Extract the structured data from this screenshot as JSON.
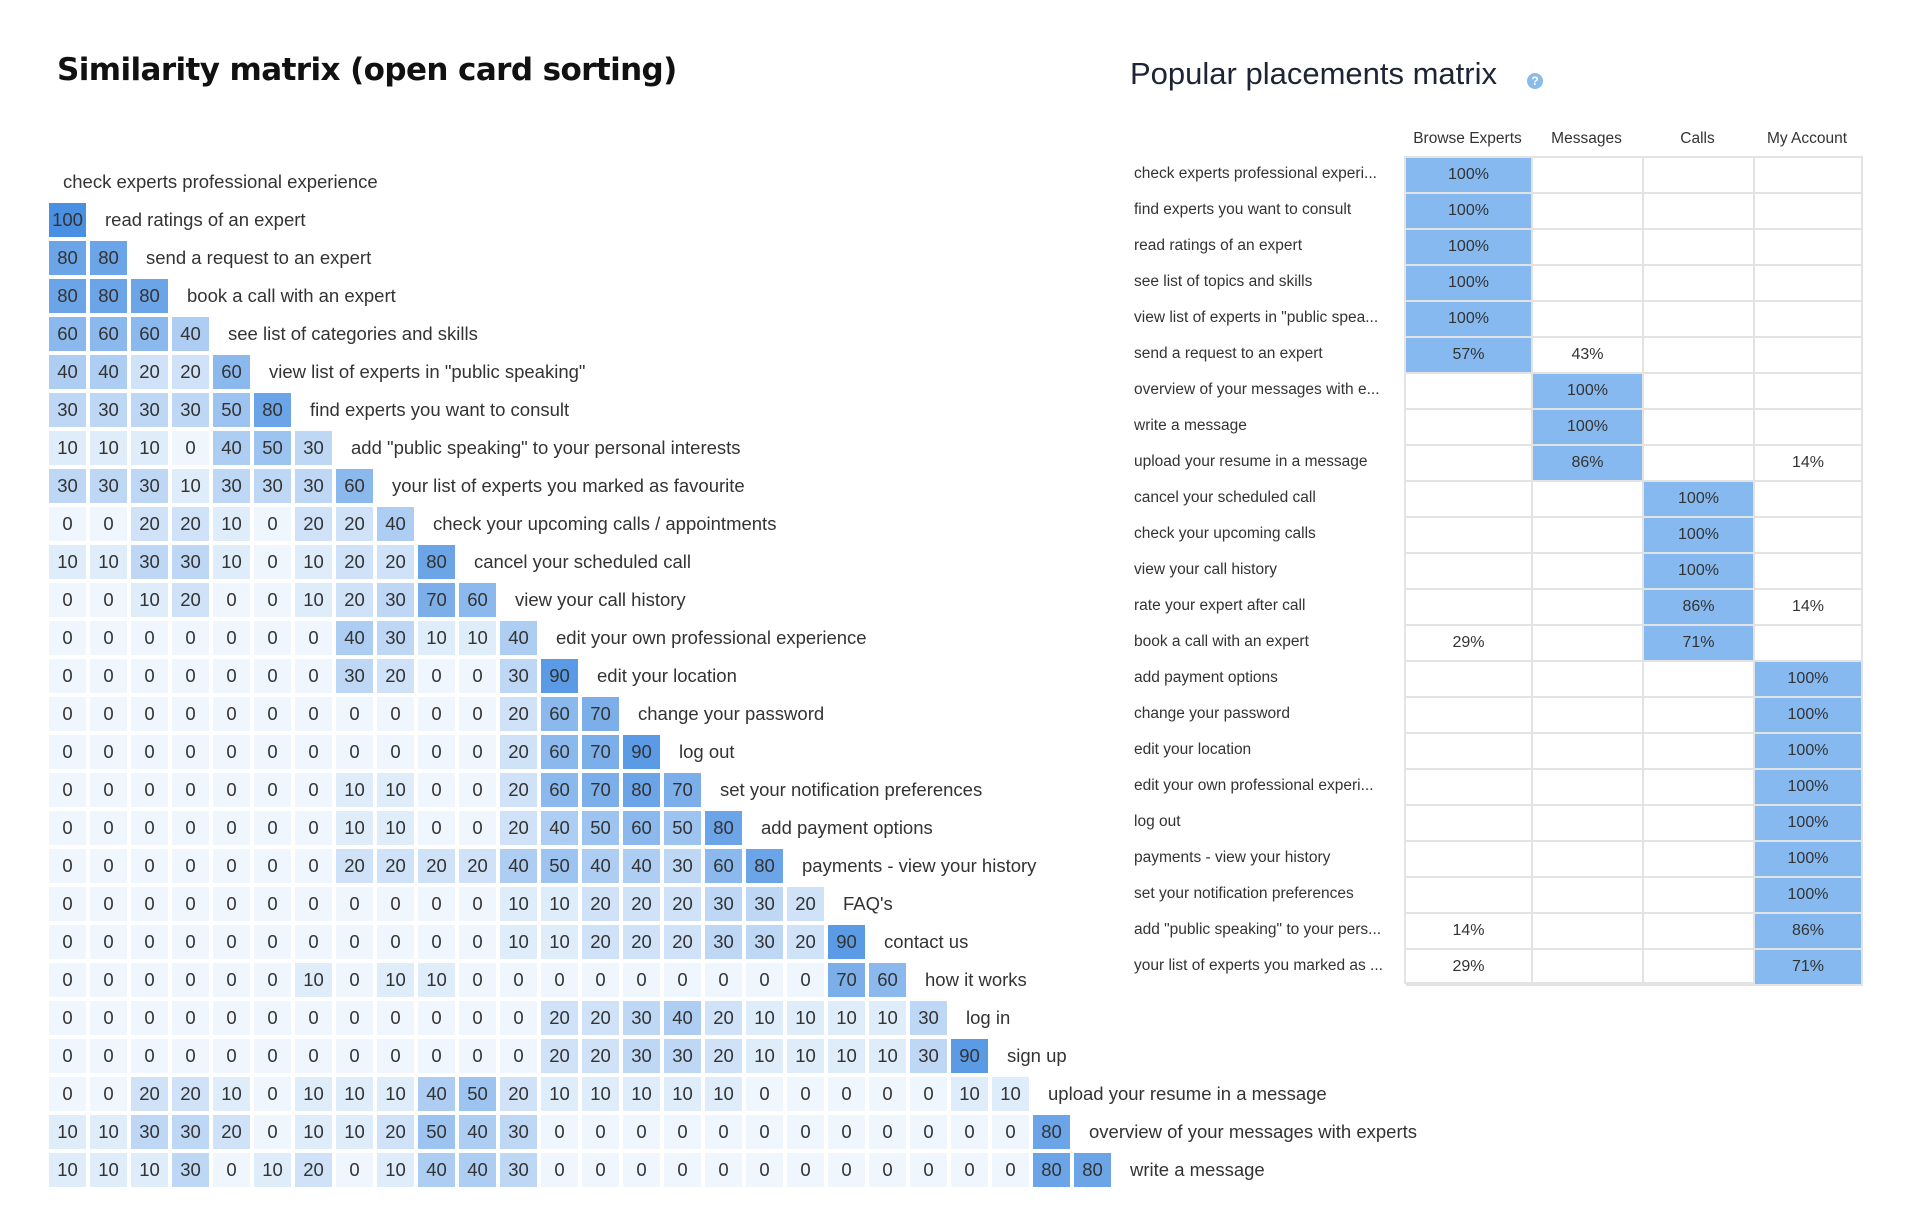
{
  "similarity_title": "Similarity matrix (open card sorting)",
  "placements_title": "Popular placements matrix",
  "icons": {
    "help": "question-circle-icon"
  },
  "colors": {
    "matrix_max": "#4a90e2",
    "matrix_min": "#f0f6fd",
    "placement_highlight": "#86b9ef",
    "grid_border": "#e3e3e3"
  },
  "chart_data": [
    {
      "type": "heatmap",
      "title": "Similarity matrix (open card sorting)",
      "value_range": [
        0,
        100
      ],
      "labels": [
        "check experts professional experience",
        "read ratings of an expert",
        "send a request to an expert",
        "book a call with an expert",
        "see list of categories and skills",
        "view list of experts in \"public speaking\"",
        "find experts you want to consult",
        "add \"public speaking\" to your personal interests",
        "your list of experts you marked as favourite",
        "check your upcoming calls / appointments",
        "cancel your scheduled call",
        "view your call history",
        "edit your own professional experience",
        "edit your location",
        "change your password",
        "log out",
        "set your notification preferences",
        "add payment options",
        "payments - view your history",
        "FAQ's",
        "contact us",
        "how it works",
        "log in",
        "sign up",
        "upload your resume in a message",
        "overview of your messages with experts",
        "write a message"
      ],
      "rows": [
        [],
        [
          100
        ],
        [
          80,
          80
        ],
        [
          80,
          80,
          80
        ],
        [
          60,
          60,
          60,
          40
        ],
        [
          40,
          40,
          20,
          20,
          60
        ],
        [
          30,
          30,
          30,
          30,
          50,
          80
        ],
        [
          10,
          10,
          10,
          0,
          40,
          50,
          30
        ],
        [
          30,
          30,
          30,
          10,
          30,
          30,
          30,
          60
        ],
        [
          0,
          0,
          20,
          20,
          10,
          0,
          20,
          20,
          40
        ],
        [
          10,
          10,
          30,
          30,
          10,
          0,
          10,
          20,
          20,
          80
        ],
        [
          0,
          0,
          10,
          20,
          0,
          0,
          10,
          20,
          30,
          70,
          60
        ],
        [
          0,
          0,
          0,
          0,
          0,
          0,
          0,
          40,
          30,
          10,
          10,
          40
        ],
        [
          0,
          0,
          0,
          0,
          0,
          0,
          0,
          30,
          20,
          0,
          0,
          30,
          90
        ],
        [
          0,
          0,
          0,
          0,
          0,
          0,
          0,
          0,
          0,
          0,
          0,
          20,
          60,
          70
        ],
        [
          0,
          0,
          0,
          0,
          0,
          0,
          0,
          0,
          0,
          0,
          0,
          20,
          60,
          70,
          90
        ],
        [
          0,
          0,
          0,
          0,
          0,
          0,
          0,
          10,
          10,
          0,
          0,
          20,
          60,
          70,
          80,
          70
        ],
        [
          0,
          0,
          0,
          0,
          0,
          0,
          0,
          10,
          10,
          0,
          0,
          20,
          40,
          50,
          60,
          50,
          80
        ],
        [
          0,
          0,
          0,
          0,
          0,
          0,
          0,
          20,
          20,
          20,
          20,
          40,
          50,
          40,
          40,
          30,
          60,
          80
        ],
        [
          0,
          0,
          0,
          0,
          0,
          0,
          0,
          0,
          0,
          0,
          0,
          10,
          10,
          20,
          20,
          20,
          30,
          30,
          20
        ],
        [
          0,
          0,
          0,
          0,
          0,
          0,
          0,
          0,
          0,
          0,
          0,
          10,
          10,
          20,
          20,
          20,
          30,
          30,
          20,
          90
        ],
        [
          0,
          0,
          0,
          0,
          0,
          0,
          10,
          0,
          10,
          10,
          0,
          0,
          0,
          0,
          0,
          0,
          0,
          0,
          0,
          70,
          60
        ],
        [
          0,
          0,
          0,
          0,
          0,
          0,
          0,
          0,
          0,
          0,
          0,
          0,
          20,
          20,
          30,
          40,
          20,
          10,
          10,
          10,
          10,
          30
        ],
        [
          0,
          0,
          0,
          0,
          0,
          0,
          0,
          0,
          0,
          0,
          0,
          0,
          20,
          20,
          30,
          30,
          20,
          10,
          10,
          10,
          10,
          30,
          90
        ],
        [
          0,
          0,
          20,
          20,
          10,
          0,
          10,
          10,
          10,
          40,
          50,
          20,
          10,
          10,
          10,
          10,
          10,
          0,
          0,
          0,
          0,
          0,
          10,
          10
        ],
        [
          10,
          10,
          30,
          30,
          20,
          0,
          10,
          10,
          20,
          50,
          40,
          30,
          0,
          0,
          0,
          0,
          0,
          0,
          0,
          0,
          0,
          0,
          0,
          0,
          80
        ],
        [
          10,
          10,
          10,
          30,
          0,
          10,
          20,
          0,
          10,
          40,
          40,
          30,
          0,
          0,
          0,
          0,
          0,
          0,
          0,
          0,
          0,
          0,
          0,
          0,
          80,
          80
        ]
      ]
    },
    {
      "type": "table",
      "title": "Popular placements matrix",
      "columns": [
        "Browse Experts",
        "Messages",
        "Calls",
        "My Account"
      ],
      "rows": [
        {
          "label": "check experts professional experi...",
          "values": [
            "100%",
            "",
            "",
            ""
          ],
          "top": 0
        },
        {
          "label": "find experts you want to consult",
          "values": [
            "100%",
            "",
            "",
            ""
          ],
          "top": 0
        },
        {
          "label": "read ratings of an expert",
          "values": [
            "100%",
            "",
            "",
            ""
          ],
          "top": 0
        },
        {
          "label": "see list of topics and skills",
          "values": [
            "100%",
            "",
            "",
            ""
          ],
          "top": 0
        },
        {
          "label": "view list of experts in \"public spea...",
          "values": [
            "100%",
            "",
            "",
            ""
          ],
          "top": 0
        },
        {
          "label": "send a request to an expert",
          "values": [
            "57%",
            "43%",
            "",
            ""
          ],
          "top": 0
        },
        {
          "label": "overview of your messages with e...",
          "values": [
            "",
            "100%",
            "",
            ""
          ],
          "top": 1
        },
        {
          "label": "write a message",
          "values": [
            "",
            "100%",
            "",
            ""
          ],
          "top": 1
        },
        {
          "label": "upload your resume in a message",
          "values": [
            "",
            "86%",
            "",
            "14%"
          ],
          "top": 1
        },
        {
          "label": "cancel your scheduled call",
          "values": [
            "",
            "",
            "100%",
            ""
          ],
          "top": 2
        },
        {
          "label": "check your upcoming calls",
          "values": [
            "",
            "",
            "100%",
            ""
          ],
          "top": 2
        },
        {
          "label": "view your call history",
          "values": [
            "",
            "",
            "100%",
            ""
          ],
          "top": 2
        },
        {
          "label": "rate your expert after call",
          "values": [
            "",
            "",
            "86%",
            "14%"
          ],
          "top": 2
        },
        {
          "label": "book a call with an expert",
          "values": [
            "29%",
            "",
            "71%",
            ""
          ],
          "top": 2
        },
        {
          "label": "add payment options",
          "values": [
            "",
            "",
            "",
            "100%"
          ],
          "top": 3
        },
        {
          "label": "change your password",
          "values": [
            "",
            "",
            "",
            "100%"
          ],
          "top": 3
        },
        {
          "label": "edit your location",
          "values": [
            "",
            "",
            "",
            "100%"
          ],
          "top": 3
        },
        {
          "label": "edit your own professional experi...",
          "values": [
            "",
            "",
            "",
            "100%"
          ],
          "top": 3
        },
        {
          "label": "log out",
          "values": [
            "",
            "",
            "",
            "100%"
          ],
          "top": 3
        },
        {
          "label": "payments - view your history",
          "values": [
            "",
            "",
            "",
            "100%"
          ],
          "top": 3
        },
        {
          "label": "set your notification preferences",
          "values": [
            "",
            "",
            "",
            "100%"
          ],
          "top": 3
        },
        {
          "label": "add \"public speaking\" to your pers...",
          "values": [
            "14%",
            "",
            "",
            "86%"
          ],
          "top": 3
        },
        {
          "label": "your list of experts you marked as ...",
          "values": [
            "29%",
            "",
            "",
            "71%"
          ],
          "top": 3
        }
      ]
    }
  ]
}
